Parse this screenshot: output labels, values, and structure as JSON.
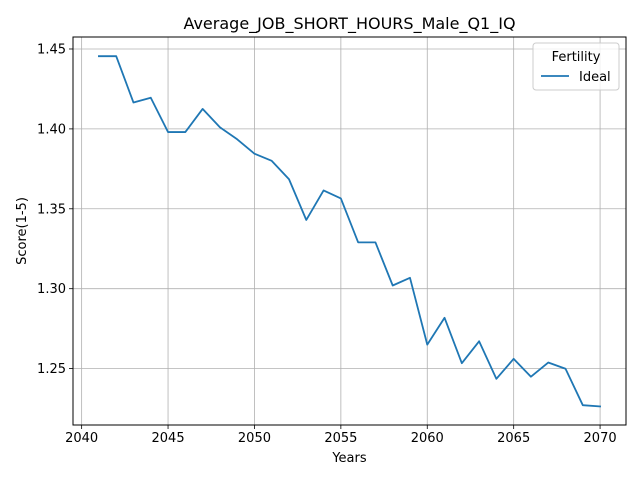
{
  "chart_data": {
    "type": "line",
    "title": "Average_JOB_SHORT_HOURS_Male_Q1_IQ",
    "xlabel": "Years",
    "ylabel": "Score(1-5)",
    "xlim": [
      2039.5,
      2071.5
    ],
    "ylim": [
      1.2147,
      1.4575
    ],
    "xticks": [
      2040,
      2045,
      2050,
      2055,
      2060,
      2065,
      2070
    ],
    "yticks": [
      1.25,
      1.3,
      1.35,
      1.4,
      1.45
    ],
    "ytick_labels": [
      "1.25",
      "1.30",
      "1.35",
      "1.40",
      "1.45"
    ],
    "grid": true,
    "legend": {
      "title": "Fertility",
      "placement": "upper right"
    },
    "series": [
      {
        "name": "Ideal",
        "color": "#1f77b4",
        "x": [
          2041,
          2042,
          2043,
          2044,
          2045,
          2046,
          2047,
          2048,
          2049,
          2050,
          2051,
          2052,
          2053,
          2054,
          2055,
          2056,
          2057,
          2058,
          2059,
          2060,
          2061,
          2062,
          2063,
          2064,
          2065,
          2066,
          2067,
          2068,
          2069,
          2070
        ],
        "y": [
          1.4455,
          1.4455,
          1.4165,
          1.4195,
          1.398,
          1.398,
          1.4125,
          1.401,
          1.3935,
          1.3845,
          1.38,
          1.3685,
          1.343,
          1.3615,
          1.3565,
          1.329,
          1.329,
          1.302,
          1.3068,
          1.265,
          1.2818,
          1.2534,
          1.2671,
          1.2436,
          1.2561,
          1.2449,
          1.2538,
          1.2499,
          1.2271,
          1.2263
        ]
      }
    ]
  }
}
